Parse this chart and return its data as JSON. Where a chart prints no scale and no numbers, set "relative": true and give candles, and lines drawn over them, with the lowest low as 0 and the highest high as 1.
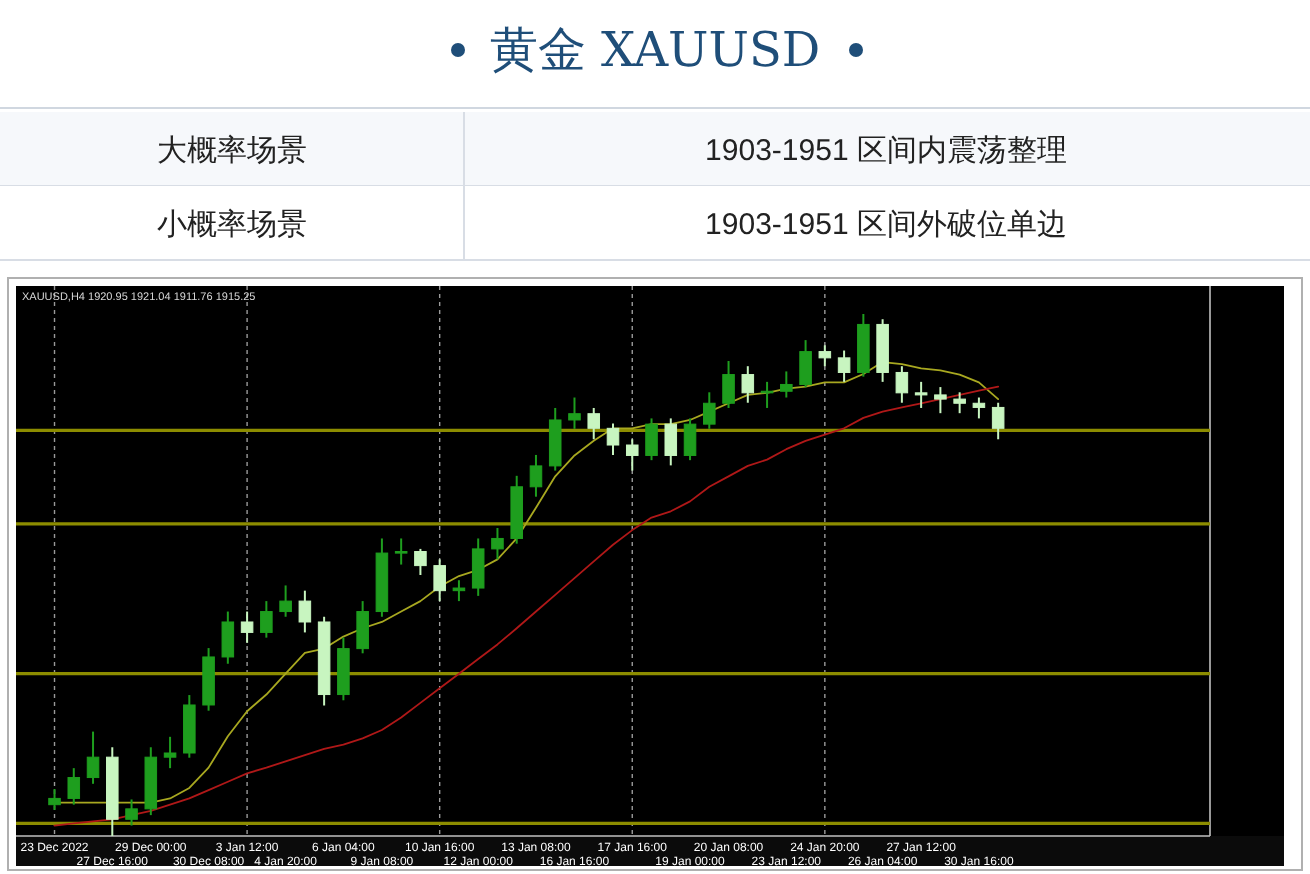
{
  "chart_data": [
    {
      "type": "other",
      "title": "黄金 XAUUSD",
      "annotations": [
        "大概率场景",
        "1903-1951 区间内震荡整理",
        "小概率场景",
        "1903-1951 区间外破位单边"
      ]
    },
    {
      "type": "candlestick",
      "relative": true,
      "categories": [
        "23 Dec 2022",
        null,
        null,
        "27 Dec 16:00",
        null,
        "29 Dec 00:00",
        null,
        null,
        "30 Dec 08:00",
        null,
        "3 Jan 12:00",
        null,
        "4 Jan 20:00",
        null,
        null,
        "6 Jan 04:00",
        null,
        "9 Jan 08:00",
        null,
        null,
        "10 Jan 16:00",
        null,
        "12 Jan 00:00",
        null,
        null,
        "13 Jan 08:00",
        null,
        "16 Jan 16:00",
        null,
        null,
        "17 Jan 16:00",
        null,
        null,
        "19 Jan 00:00",
        null,
        "20 Jan 08:00",
        null,
        null,
        "23 Jan 12:00",
        null,
        "24 Jan 20:00",
        null,
        null,
        "26 Jan 04:00",
        null,
        "27 Jan 12:00",
        null,
        null,
        "30 Jan 16:00",
        null
      ],
      "ohlc": [
        [
          0.06,
          0.09,
          0.05,
          0.072
        ],
        [
          0.072,
          0.13,
          0.06,
          0.112
        ],
        [
          0.112,
          0.2,
          0.1,
          0.151
        ],
        [
          0.151,
          0.17,
          0.0,
          0.032
        ],
        [
          0.032,
          0.07,
          0.02,
          0.052
        ],
        [
          0.052,
          0.17,
          0.04,
          0.151
        ],
        [
          0.151,
          0.19,
          0.13,
          0.159
        ],
        [
          0.159,
          0.27,
          0.15,
          0.251
        ],
        [
          0.251,
          0.36,
          0.24,
          0.343
        ],
        [
          0.343,
          0.43,
          0.33,
          0.41
        ],
        [
          0.41,
          0.43,
          0.37,
          0.39
        ],
        [
          0.39,
          0.45,
          0.38,
          0.43
        ],
        [
          0.43,
          0.48,
          0.42,
          0.45
        ],
        [
          0.45,
          0.47,
          0.39,
          0.41
        ],
        [
          0.41,
          0.42,
          0.25,
          0.271
        ],
        [
          0.271,
          0.38,
          0.26,
          0.359
        ],
        [
          0.359,
          0.45,
          0.35,
          0.43
        ],
        [
          0.43,
          0.57,
          0.42,
          0.542
        ],
        [
          0.542,
          0.57,
          0.52,
          0.545
        ],
        [
          0.545,
          0.55,
          0.5,
          0.518
        ],
        [
          0.518,
          0.53,
          0.45,
          0.47
        ],
        [
          0.47,
          0.49,
          0.45,
          0.475
        ],
        [
          0.475,
          0.57,
          0.46,
          0.55
        ],
        [
          0.55,
          0.59,
          0.53,
          0.57
        ],
        [
          0.57,
          0.69,
          0.56,
          0.669
        ],
        [
          0.669,
          0.73,
          0.65,
          0.709
        ],
        [
          0.709,
          0.82,
          0.7,
          0.797
        ],
        [
          0.797,
          0.84,
          0.78,
          0.809
        ],
        [
          0.809,
          0.82,
          0.76,
          0.781
        ],
        [
          0.781,
          0.79,
          0.73,
          0.749
        ],
        [
          0.749,
          0.76,
          0.7,
          0.729
        ],
        [
          0.729,
          0.8,
          0.72,
          0.789
        ],
        [
          0.789,
          0.8,
          0.71,
          0.729
        ],
        [
          0.729,
          0.8,
          0.72,
          0.789
        ],
        [
          0.789,
          0.85,
          0.78,
          0.829
        ],
        [
          0.829,
          0.91,
          0.82,
          0.884
        ],
        [
          0.884,
          0.9,
          0.83,
          0.849
        ],
        [
          0.849,
          0.87,
          0.82,
          0.852
        ],
        [
          0.852,
          0.89,
          0.84,
          0.865
        ],
        [
          0.865,
          0.95,
          0.86,
          0.928
        ],
        [
          0.928,
          0.94,
          0.9,
          0.916
        ],
        [
          0.916,
          0.93,
          0.87,
          0.888
        ],
        [
          0.888,
          1.0,
          0.88,
          0.98
        ],
        [
          0.98,
          0.99,
          0.87,
          0.888
        ],
        [
          0.888,
          0.9,
          0.83,
          0.849
        ],
        [
          0.849,
          0.87,
          0.82,
          0.845
        ],
        [
          0.845,
          0.86,
          0.81,
          0.837
        ],
        [
          0.837,
          0.85,
          0.81,
          0.829
        ],
        [
          0.829,
          0.84,
          0.8,
          0.821
        ],
        [
          0.821,
          0.83,
          0.76,
          0.781
        ]
      ],
      "colors": [
        "#1e9e1e",
        "#1e9e1e",
        "#1e9e1e",
        "#c8f5c0",
        "#1e9e1e",
        "#1e9e1e",
        "#1e9e1e",
        "#1e9e1e",
        "#1e9e1e",
        "#1e9e1e",
        "#c8f5c0",
        "#1e9e1e",
        "#1e9e1e",
        "#c8f5c0",
        "#c8f5c0",
        "#1e9e1e",
        "#1e9e1e",
        "#1e9e1e",
        "#1e9e1e",
        "#c8f5c0",
        "#c8f5c0",
        "#1e9e1e",
        "#1e9e1e",
        "#1e9e1e",
        "#1e9e1e",
        "#1e9e1e",
        "#1e9e1e",
        "#1e9e1e",
        "#c8f5c0",
        "#c8f5c0",
        "#c8f5c0",
        "#1e9e1e",
        "#c8f5c0",
        "#1e9e1e",
        "#1e9e1e",
        "#1e9e1e",
        "#c8f5c0",
        "#1e9e1e",
        "#1e9e1e",
        "#1e9e1e",
        "#c8f5c0",
        "#c8f5c0",
        "#1e9e1e",
        "#c8f5c0",
        "#c8f5c0",
        "#c8f5c0",
        "#c8f5c0",
        "#c8f5c0",
        "#c8f5c0",
        "#c8f5c0"
      ],
      "series": [
        {
          "type": "line",
          "color": "#a8a820",
          "values": [
            0.064,
            0.064,
            0.064,
            0.064,
            0.064,
            0.064,
            0.072,
            0.092,
            0.131,
            0.191,
            0.239,
            0.271,
            0.311,
            0.351,
            0.359,
            0.382,
            0.398,
            0.41,
            0.43,
            0.45,
            0.478,
            0.498,
            0.51,
            0.53,
            0.57,
            0.629,
            0.689,
            0.729,
            0.757,
            0.781,
            0.781,
            0.789,
            0.789,
            0.797,
            0.813,
            0.829,
            0.845,
            0.849,
            0.857,
            0.861,
            0.869,
            0.869,
            0.885,
            0.908,
            0.904,
            0.896,
            0.892,
            0.884,
            0.869,
            0.837
          ]
        },
        {
          "type": "line",
          "color": "#b01818",
          "values": [
            0.02,
            0.024,
            0.028,
            0.032,
            0.04,
            0.048,
            0.06,
            0.072,
            0.088,
            0.104,
            0.12,
            0.131,
            0.143,
            0.155,
            0.167,
            0.175,
            0.187,
            0.203,
            0.227,
            0.255,
            0.283,
            0.311,
            0.339,
            0.367,
            0.398,
            0.43,
            0.462,
            0.494,
            0.526,
            0.558,
            0.586,
            0.61,
            0.622,
            0.641,
            0.669,
            0.689,
            0.709,
            0.721,
            0.741,
            0.757,
            0.769,
            0.781,
            0.801,
            0.813,
            0.821,
            0.829,
            0.837,
            0.845,
            0.853,
            0.861
          ]
        }
      ],
      "ref_lines": [
        {
          "axis": "y",
          "value": 0.777,
          "color": "#8c8c00"
        },
        {
          "axis": "y",
          "value": 0.598,
          "color": "#8c8c00"
        },
        {
          "axis": "y",
          "value": 0.311,
          "color": "#8c8c00"
        },
        {
          "axis": "y",
          "value": 0.024,
          "color": "#8c8c00"
        }
      ],
      "grid": "x",
      "annotations": [
        "XAUUSD,H4 1920.95 1921.04 1911.76 1915.25"
      ]
    }
  ]
}
